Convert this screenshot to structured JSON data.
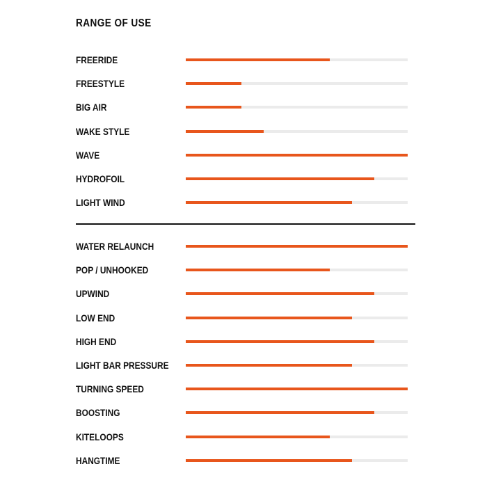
{
  "chart_data": {
    "type": "bar",
    "title": "RANGE OF USE",
    "orientation": "horizontal",
    "xlim": [
      0,
      1
    ],
    "colors": {
      "fill": "#e8561c",
      "track": "#ebebeb"
    },
    "groups": [
      {
        "categories": [
          "FREERIDE",
          "FREESTYLE",
          "BIG AIR",
          "WAKE STYLE",
          "WAVE",
          "HYDROFOIL",
          "LIGHT WIND"
        ],
        "values": [
          0.65,
          0.25,
          0.25,
          0.35,
          1.0,
          0.85,
          0.75
        ]
      },
      {
        "categories": [
          "WATER RELAUNCH",
          "POP / UNHOOKED",
          "UPWIND",
          "LOW END",
          "HIGH END",
          "LIGHT BAR PRESSURE",
          "TURNING SPEED",
          "BOOSTING",
          "KITELOOPS",
          "HANGTIME"
        ],
        "values": [
          1.0,
          0.65,
          0.85,
          0.75,
          0.85,
          0.75,
          1.0,
          0.85,
          0.65,
          0.75
        ]
      }
    ]
  }
}
